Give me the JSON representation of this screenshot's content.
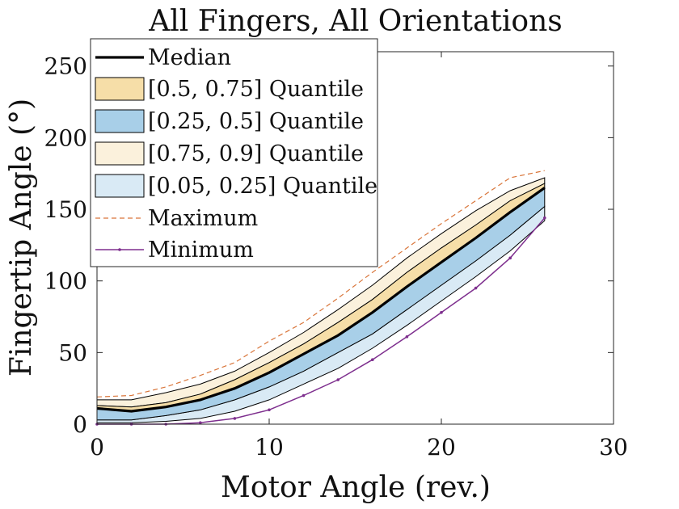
{
  "chart_data": {
    "type": "area",
    "title": "All Fingers, All Orientations",
    "xlabel": "Motor Angle (rev.)",
    "ylabel": "Fingertip Angle (°)",
    "xlim": [
      0,
      30
    ],
    "ylim": [
      0,
      260
    ],
    "xticks": [
      "0",
      "10",
      "20",
      "30"
    ],
    "yticks": [
      "0",
      "50",
      "100",
      "150",
      "200",
      "250"
    ],
    "grid": false,
    "legend_position": "top-left",
    "x": [
      0,
      2,
      4,
      6,
      8,
      10,
      12,
      14,
      16,
      18,
      20,
      22,
      24,
      26
    ],
    "series": [
      {
        "name": "Median",
        "color": "#000000",
        "values": [
          11,
          9,
          12,
          17,
          25,
          36,
          49,
          62,
          78,
          96,
          113,
          130,
          148,
          165
        ]
      },
      {
        "name": "[0.5, 0.75] Quantile",
        "color": "#f6dea8",
        "lower": [
          11,
          9,
          12,
          17,
          25,
          36,
          49,
          62,
          78,
          96,
          113,
          130,
          148,
          165
        ],
        "upper": [
          13,
          12,
          15,
          21,
          31,
          43,
          56,
          71,
          87,
          106,
          123,
          139,
          156,
          168
        ]
      },
      {
        "name": "[0.25, 0.5] Quantile",
        "color": "#a8cfe8",
        "lower": [
          3,
          3,
          6,
          10,
          17,
          26,
          37,
          50,
          63,
          80,
          97,
          114,
          132,
          152
        ],
        "upper": [
          11,
          9,
          12,
          17,
          25,
          36,
          49,
          62,
          78,
          96,
          113,
          130,
          148,
          165
        ]
      },
      {
        "name": "[0.75, 0.9] Quantile",
        "color": "#fbf1dc",
        "lower": [
          13,
          12,
          15,
          21,
          31,
          43,
          56,
          71,
          87,
          106,
          123,
          139,
          156,
          168
        ],
        "upper": [
          17,
          17,
          22,
          28,
          37,
          50,
          64,
          80,
          97,
          116,
          133,
          149,
          163,
          172
        ]
      },
      {
        "name": "[0.05, 0.25] Quantile",
        "color": "#d9eaf5",
        "lower": [
          1,
          1,
          2,
          4,
          9,
          17,
          28,
          39,
          53,
          69,
          86,
          103,
          121,
          142
        ],
        "upper": [
          3,
          3,
          6,
          10,
          17,
          26,
          37,
          50,
          63,
          80,
          97,
          114,
          132,
          152
        ]
      },
      {
        "name": "Maximum",
        "color": "#d9753a",
        "values": [
          19,
          20,
          26,
          34,
          43,
          58,
          71,
          88,
          106,
          123,
          140,
          156,
          172,
          177
        ]
      },
      {
        "name": "Minimum",
        "color": "#7e2f8e",
        "values": [
          0,
          0,
          0,
          1,
          4,
          10,
          20,
          31,
          45,
          61,
          78,
          95,
          116,
          144
        ]
      }
    ]
  }
}
